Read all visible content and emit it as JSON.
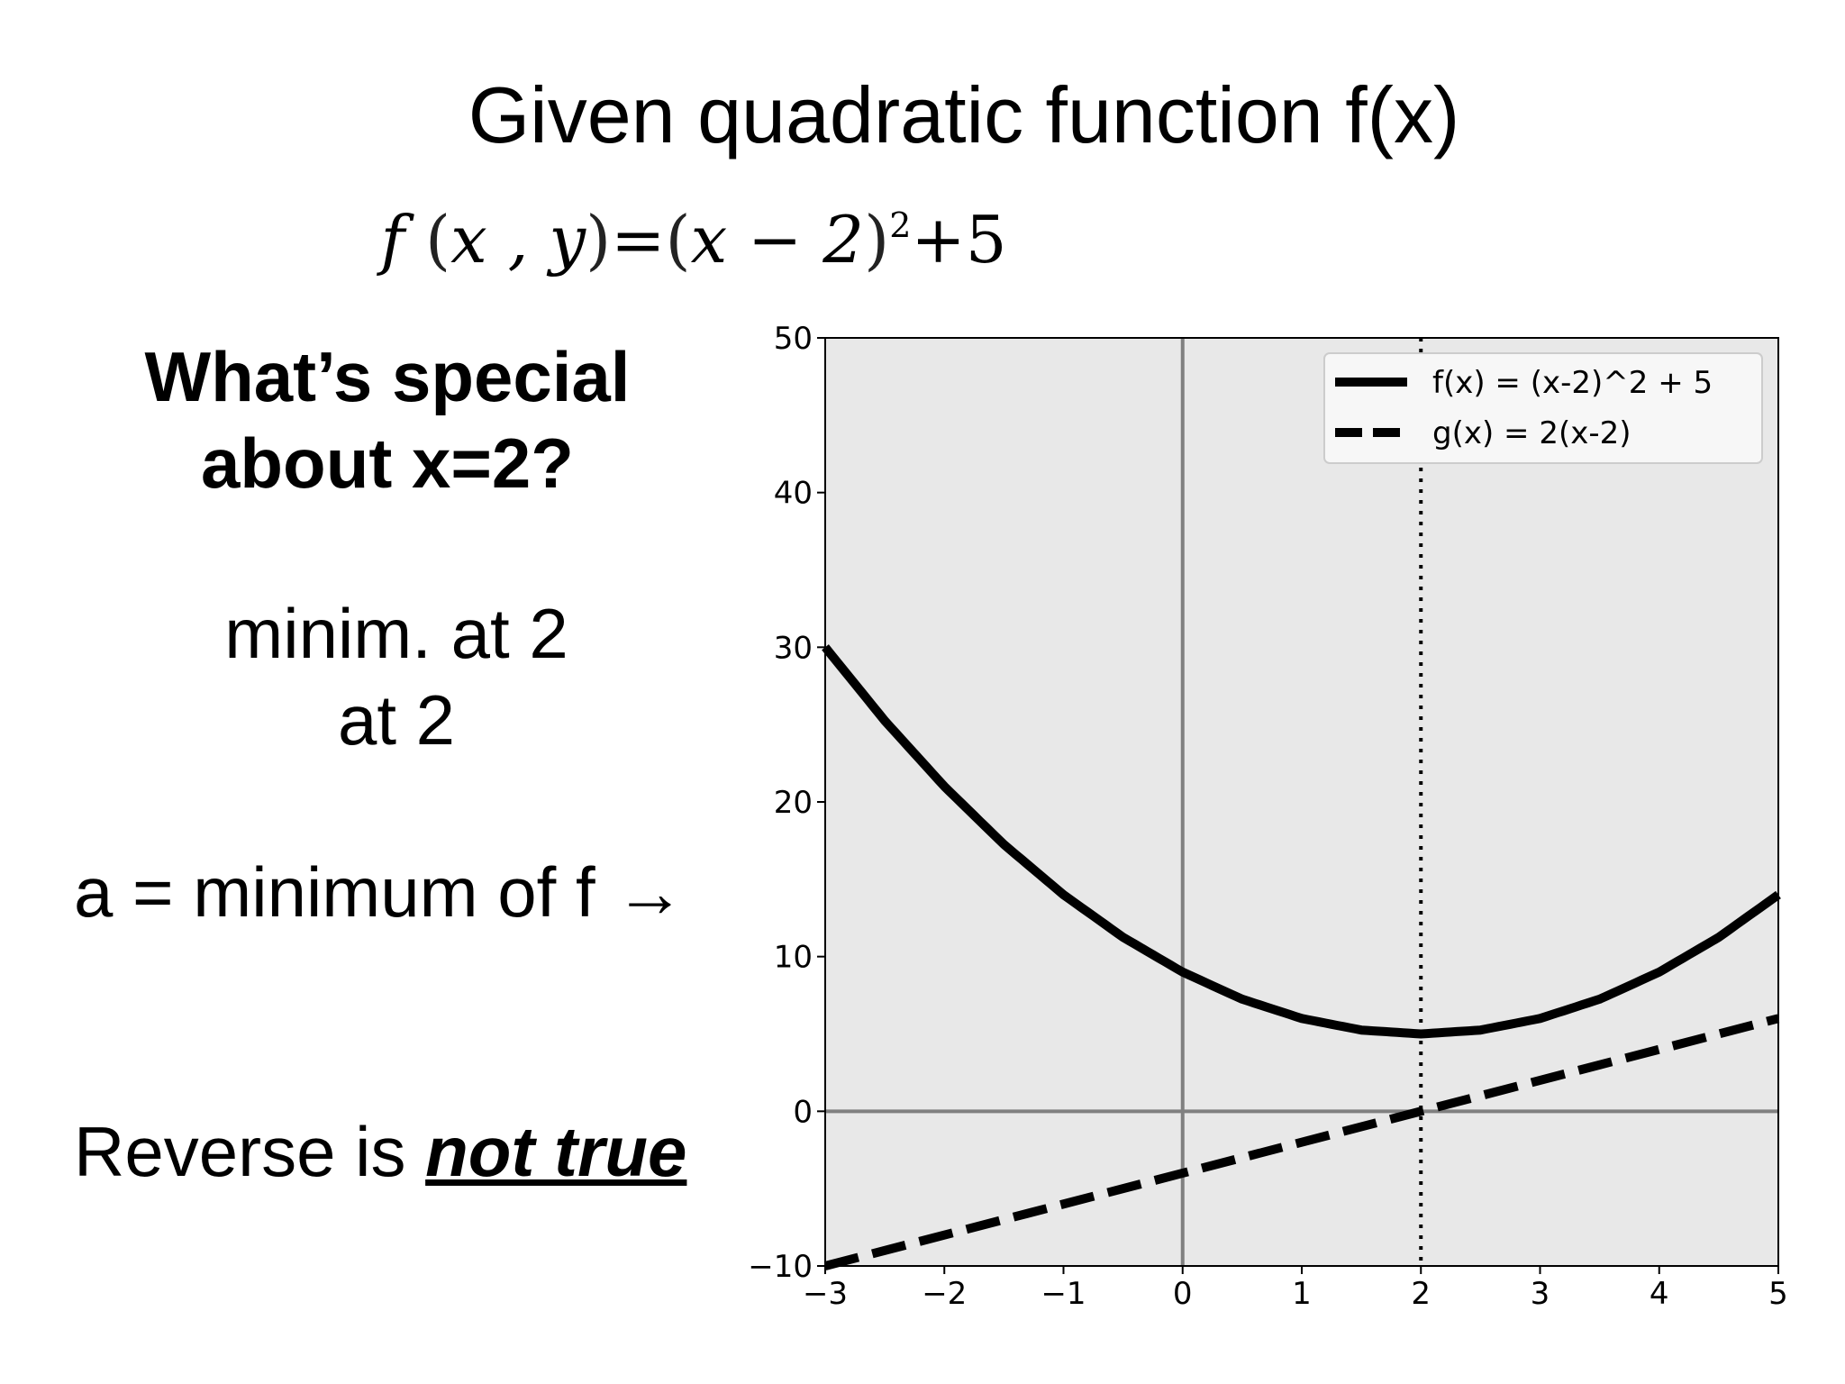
{
  "slide": {
    "title": "Given quadratic function f(x)",
    "formula": {
      "lhs_func": "f",
      "lhs_args": "x , y",
      "equals": "=",
      "rhs_base": "x − 2",
      "rhs_exp": "2",
      "rhs_tail": "+5"
    },
    "question_line1": "What’s special",
    "question_line2": "about x=2?",
    "note_line1": "minim. at 2",
    "note_line2": "at 2",
    "min_text": "a = minimum of f →",
    "reverse_prefix": "Reverse is ",
    "reverse_emphasis": "not true"
  },
  "chart_data": {
    "type": "line",
    "xlim": [
      -3,
      5
    ],
    "ylim": [
      -10,
      50
    ],
    "x_ticks": [
      -3,
      -2,
      -1,
      0,
      1,
      2,
      3,
      4,
      5
    ],
    "y_ticks": [
      -10,
      0,
      10,
      20,
      30,
      40,
      50
    ],
    "x_tick_labels": [
      "−3",
      "−2",
      "−1",
      "0",
      "1",
      "2",
      "3",
      "4",
      "5"
    ],
    "y_tick_labels": [
      "−10",
      "0",
      "10",
      "20",
      "30",
      "40",
      "50"
    ],
    "grid": false,
    "background": "#e8e8e8",
    "legend_position": "top-right",
    "series": [
      {
        "name": "f(x) = (x-2)^2 + 5",
        "style": "solid",
        "color": "#000000",
        "x": [
          -3,
          -2.5,
          -2,
          -1.5,
          -1,
          -0.5,
          0,
          0.5,
          1,
          1.5,
          2,
          2.5,
          3,
          3.5,
          4,
          4.5,
          5
        ],
        "y": [
          30,
          25.25,
          21,
          17.25,
          14,
          11.25,
          9,
          7.25,
          6,
          5.25,
          5,
          5.25,
          6,
          7.25,
          9,
          11.25,
          14
        ]
      },
      {
        "name": "g(x) = 2(x-2)",
        "style": "dashed",
        "color": "#000000",
        "x": [
          -3,
          5
        ],
        "y": [
          -10,
          6
        ]
      }
    ],
    "reference_lines": {
      "horizontal_y": 0,
      "vertical_x": 0,
      "vertical_dotted_x": 2,
      "axis_line_color": "#808080"
    }
  }
}
